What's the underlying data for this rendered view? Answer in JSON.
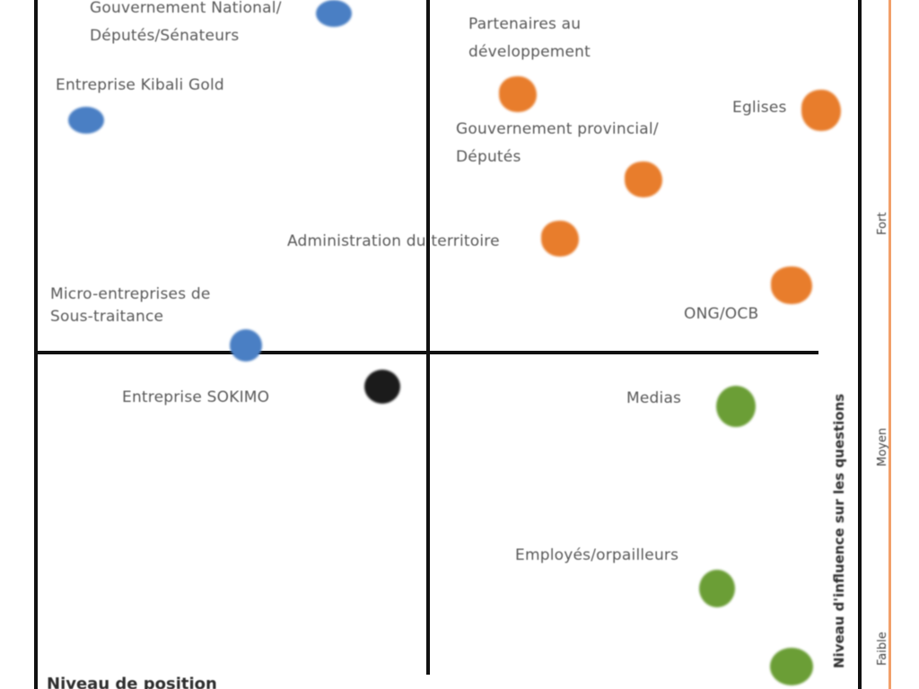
{
  "colors": {
    "blue": "#4a7fc4",
    "orange": "#e87d2c",
    "green": "#6b9e36",
    "black": "#1b1b1b",
    "axis_accent": "#f2a06a"
  },
  "labels": {
    "gov_national": [
      "Gouvernement National/",
      "Députés/Sénateurs"
    ],
    "kibali": "Entreprise Kibali Gold",
    "micro": [
      "Micro-entreprises de",
      "Sous-traitance"
    ],
    "sokimo": "Entreprise SOKIMO",
    "partenaires": [
      "Partenaires au",
      "développement"
    ],
    "gov_prov": [
      "Gouvernement provincial/",
      "Députés"
    ],
    "eglises": "Eglises",
    "administration": "Administration du territoire",
    "ong": "ONG/OCB",
    "medias": "Medias",
    "employes": "Employés/orpailleurs",
    "vertical_title": "Niveau d'influence sur les questions",
    "axis_fort": "Fort",
    "axis_moyen": "Moyen",
    "axis_faible": "Faible",
    "bottom_title": "Niveau de position"
  }
}
